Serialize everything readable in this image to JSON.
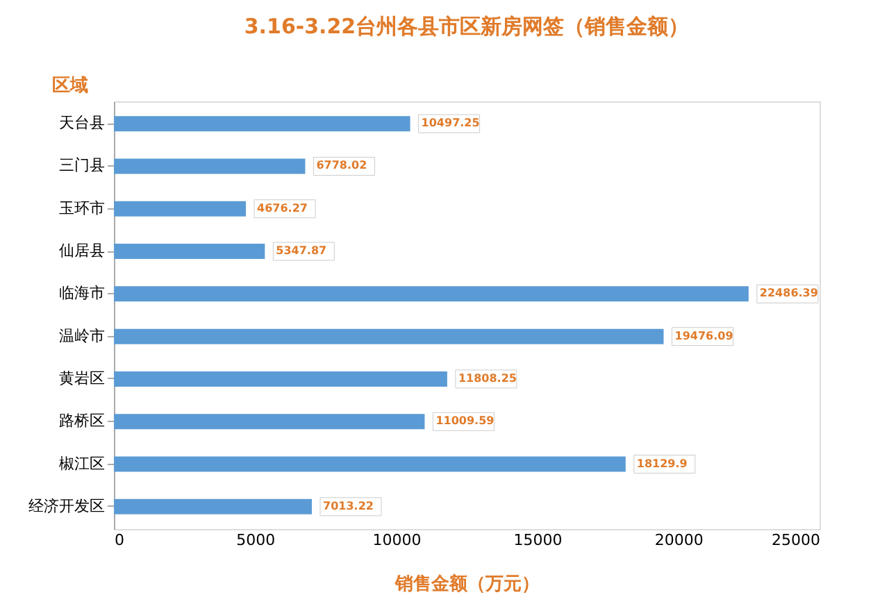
{
  "chart_data": {
    "type": "bar",
    "orientation": "horizontal",
    "title": "3.16-3.22台州各县市区新房网签（销售金额）",
    "ylabel": "区域",
    "xlabel": "销售金额（万元）",
    "categories": [
      "天台县",
      "三门县",
      "玉环市",
      "仙居县",
      "临海市",
      "温岭市",
      "黄岩区",
      "路桥区",
      "椒江区",
      "经济开发区"
    ],
    "series": [
      {
        "color": "#5b9bd5",
        "values": [
          10497.25,
          6778.02,
          4676.27,
          5347.87,
          22486.39,
          19476.09,
          11808.25,
          11009.59,
          18129.9,
          7013.22
        ]
      }
    ],
    "xlim": [
      0,
      25000
    ],
    "xticks": [
      0,
      5000,
      10000,
      15000,
      20000,
      25000
    ],
    "grid": false,
    "legend": false,
    "data_labels": true
  }
}
